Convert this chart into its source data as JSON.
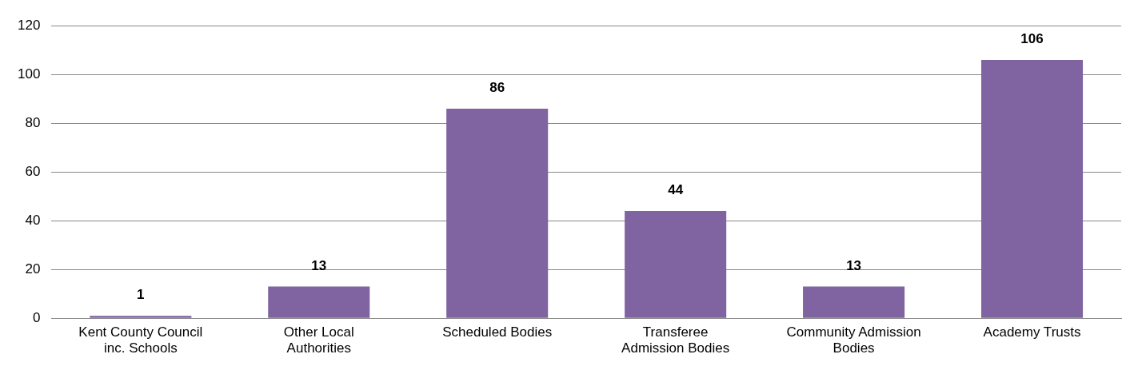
{
  "chart_data": {
    "type": "bar",
    "categories": [
      "Kent County Council inc. Schools",
      "Other Local Authorities",
      "Scheduled Bodies",
      "Transferee Admission Bodies",
      "Community Admission Bodies",
      "Academy Trusts"
    ],
    "values": [
      1,
      13,
      86,
      44,
      13,
      106
    ],
    "color": "#8064a2",
    "ylim": [
      0,
      120
    ],
    "yticks": [
      0,
      20,
      40,
      60,
      80,
      100,
      120
    ],
    "grid": "y",
    "data_labels": true
  }
}
